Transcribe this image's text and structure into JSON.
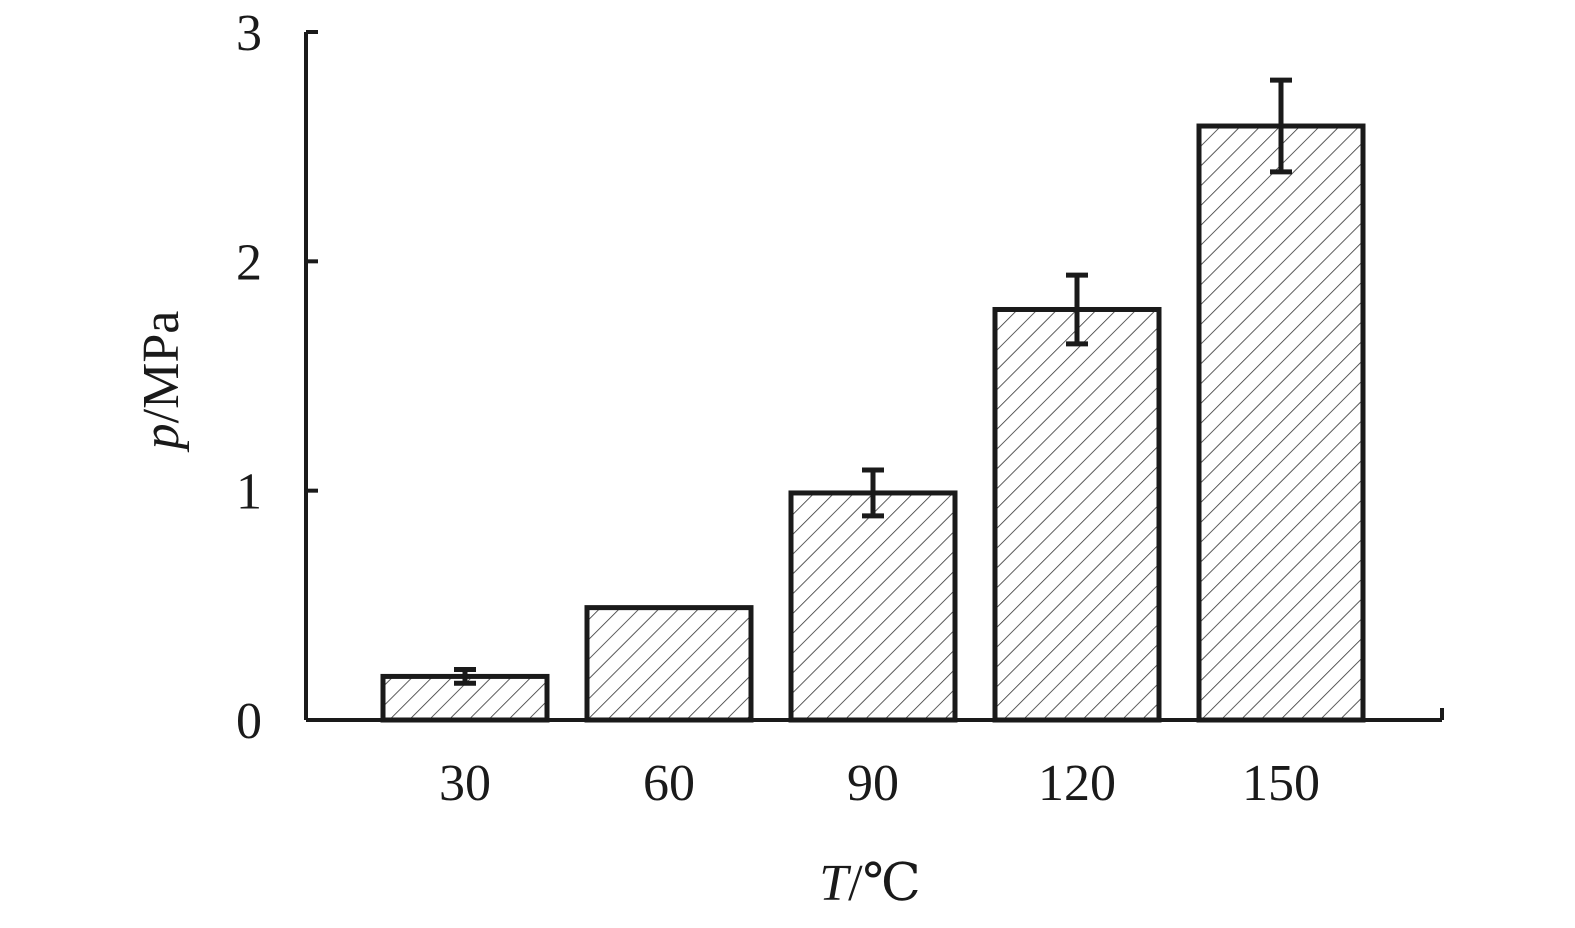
{
  "chart_data": {
    "type": "bar",
    "categories": [
      "30",
      "60",
      "90",
      "120",
      "150"
    ],
    "values": [
      0.19,
      0.49,
      0.99,
      1.79,
      2.59
    ],
    "error": [
      0.03,
      0,
      0.1,
      0.15,
      0.2
    ],
    "title": "",
    "xlabel": {
      "var": "T",
      "unit": "/℃"
    },
    "ylabel": {
      "var": "p",
      "unit": "/MPa"
    },
    "ylim": [
      0,
      3
    ],
    "yticks": [
      "0",
      "1",
      "2",
      "3"
    ],
    "grid": false,
    "bar_fill": "hatched",
    "colors": {
      "stroke": "#1a1a1a",
      "background": "#ffffff"
    }
  }
}
